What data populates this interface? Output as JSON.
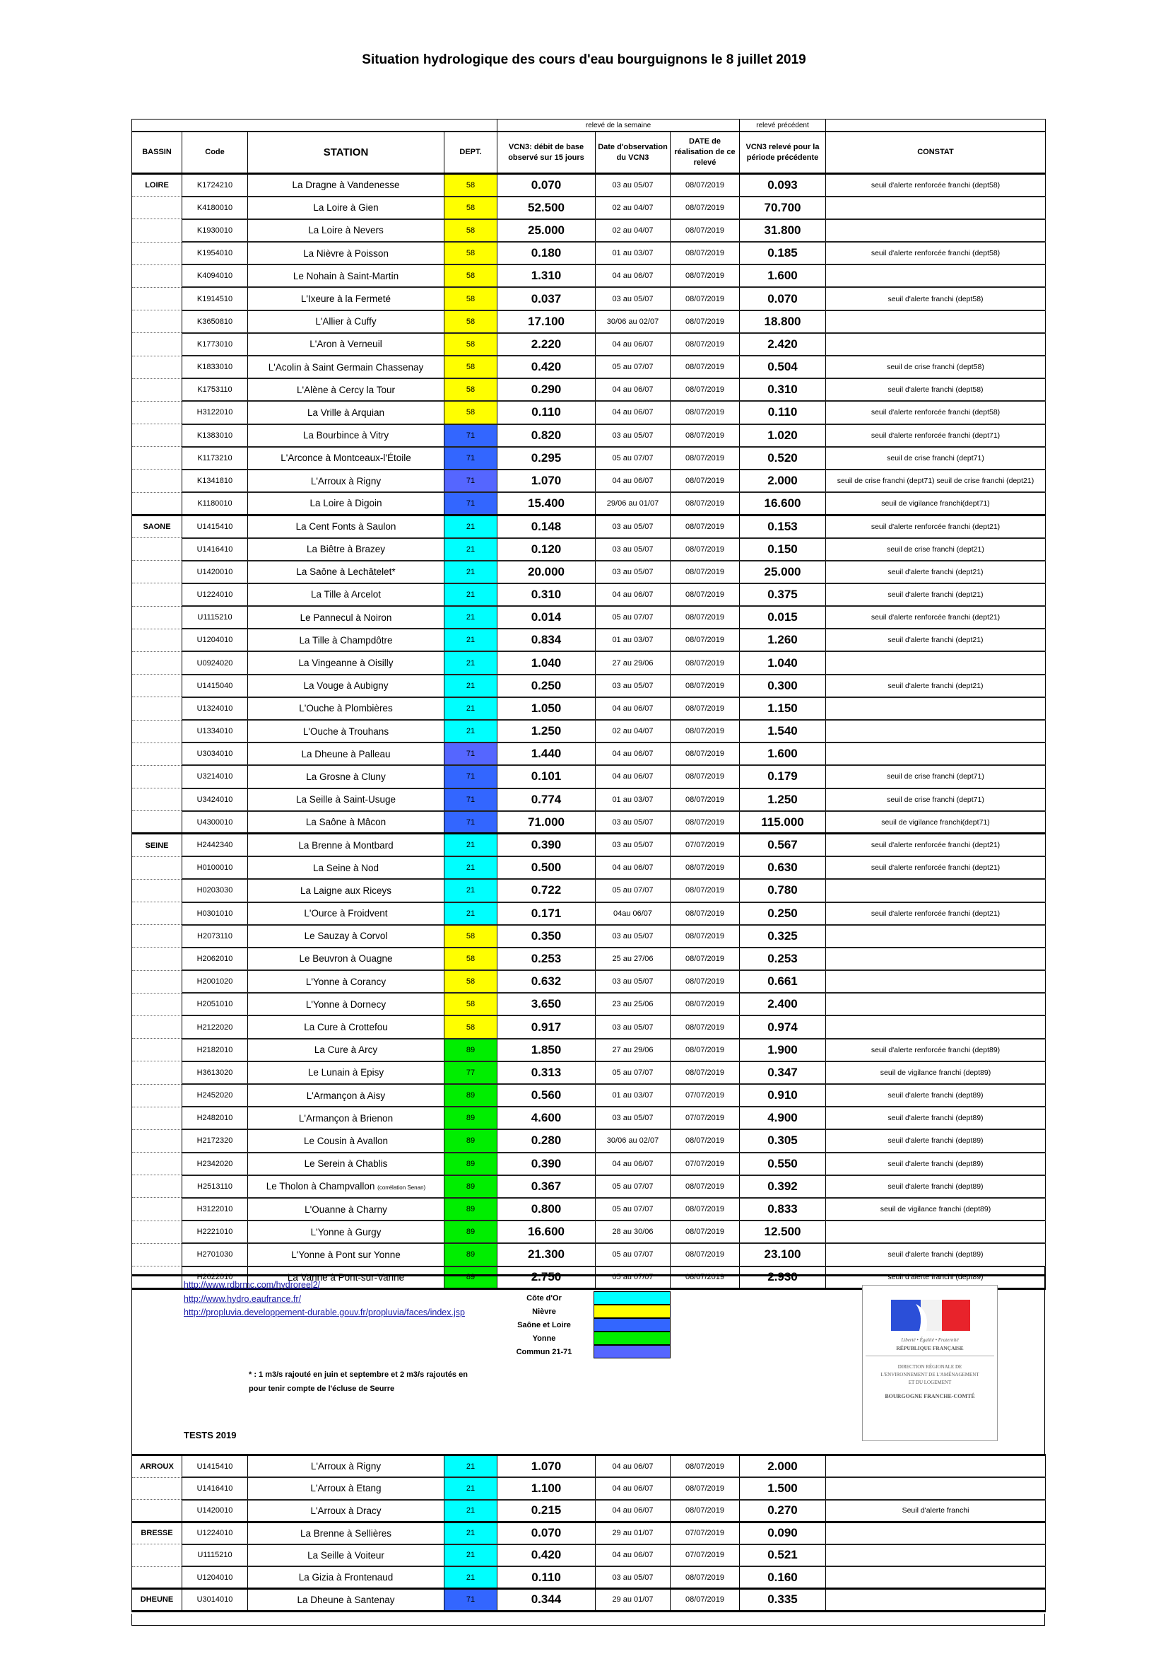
{
  "title": "Situation hydrologique des cours d'eau bourguignons le 8 juillet 2019",
  "band": {
    "week": "relevé de la semaine",
    "previous": "relevé précédent"
  },
  "headers": {
    "bassin": "BASSIN",
    "code": "Code",
    "station": "STATION",
    "dept": "DEPT.",
    "vcn3": "VCN3: débit de base observé sur 15 jours",
    "date_obs": "Date d'observation du VCN3",
    "date_releve": "DATE de réalisation de ce relevé",
    "vcn3_prev": "VCN3 relevé pour la période précédente",
    "constat": "CONSTAT"
  },
  "colors": {
    "cote": "#00ffff",
    "nievre": "#ffff00",
    "saone": "#3366ff",
    "yonne": "#00ee00",
    "commun": "#5566ff"
  },
  "main": {
    "groups": [
      {
        "bassin": "LOIRE",
        "rows": [
          [
            "K1724210",
            "La Dragne à Vandenesse",
            "58",
            "0.070",
            "03 au 05/07",
            "08/07/2019",
            "0.093",
            "seuil d'alerte renforcée franchi (dept58)",
            "nievre"
          ],
          [
            "K4180010",
            "La Loire à Gien",
            "58",
            "52.500",
            "02 au 04/07",
            "08/07/2019",
            "70.700",
            "",
            "nievre"
          ],
          [
            "K1930010",
            "La Loire à Nevers",
            "58",
            "25.000",
            "02 au 04/07",
            "08/07/2019",
            "31.800",
            "",
            "nievre"
          ],
          [
            "K1954010",
            "La Nièvre à Poisson",
            "58",
            "0.180",
            "01 au 03/07",
            "08/07/2019",
            "0.185",
            "seuil d'alerte renforcée franchi (dept58)",
            "nievre"
          ],
          [
            "K4094010",
            "Le Nohain à Saint-Martin",
            "58",
            "1.310",
            "04 au 06/07",
            "08/07/2019",
            "1.600",
            "",
            "nievre"
          ],
          [
            "K1914510",
            "L'Ixeure à la Fermeté",
            "58",
            "0.037",
            "03 au 05/07",
            "08/07/2019",
            "0.070",
            "seuil d'alerte franchi (dept58)",
            "nievre"
          ],
          [
            "K3650810",
            "L'Allier à Cuffy",
            "58",
            "17.100",
            "30/06 au 02/07",
            "08/07/2019",
            "18.800",
            "",
            "nievre"
          ],
          [
            "K1773010",
            "L'Aron à Verneuil",
            "58",
            "2.220",
            "04 au 06/07",
            "08/07/2019",
            "2.420",
            "",
            "nievre"
          ],
          [
            "K1833010",
            "L'Acolin à Saint Germain Chassenay",
            "58",
            "0.420",
            "05 au 07/07",
            "08/07/2019",
            "0.504",
            "seuil de crise franchi (dept58)",
            "nievre"
          ],
          [
            "K1753110",
            "L'Alène à Cercy la Tour",
            "58",
            "0.290",
            "04 au 06/07",
            "08/07/2019",
            "0.310",
            "seuil d'alerte franchi (dept58)",
            "nievre"
          ],
          [
            "H3122010",
            "La Vrille à Arquian",
            "58",
            "0.110",
            "04 au 06/07",
            "08/07/2019",
            "0.110",
            "seuil d'alerte renforcée franchi (dept58)",
            "nievre"
          ],
          [
            "K1383010",
            "La Bourbince à Vitry",
            "71",
            "0.820",
            "03 au 05/07",
            "08/07/2019",
            "1.020",
            "seuil d'alerte renforcée franchi (dept71)",
            "saone"
          ],
          [
            "K1173210",
            "L'Arconce à Montceaux-l'Étoile",
            "71",
            "0.295",
            "05 au 07/07",
            "08/07/2019",
            "0.520",
            "seuil de crise franchi (dept71)",
            "saone"
          ],
          [
            "K1341810",
            "L'Arroux à Rigny",
            "71",
            "1.070",
            "04 au 06/07",
            "08/07/2019",
            "2.000",
            "seuil de crise franchi (dept71)  seuil de crise franchi (dept21)",
            "commun"
          ],
          [
            "K1180010",
            "La Loire à Digoin",
            "71",
            "15.400",
            "29/06 au 01/07",
            "08/07/2019",
            "16.600",
            "seuil de vigilance franchi(dept71)",
            "saone"
          ]
        ]
      },
      {
        "bassin": "SAONE",
        "rows": [
          [
            "U1415410",
            "La Cent Fonts à Saulon",
            "21",
            "0.148",
            "03 au 05/07",
            "08/07/2019",
            "0.153",
            "seuil d'alerte renforcée franchi (dept21)",
            "cote"
          ],
          [
            "U1416410",
            "La Biêtre à Brazey",
            "21",
            "0.120",
            "03 au 05/07",
            "08/07/2019",
            "0.150",
            "seuil de crise franchi (dept21)",
            "cote"
          ],
          [
            "U1420010",
            "La Saône à Lechâtelet*",
            "21",
            "20.000",
            "03 au 05/07",
            "08/07/2019",
            "25.000",
            "seuil d'alerte franchi (dept21)",
            "cote"
          ],
          [
            "U1224010",
            "La Tille à Arcelot",
            "21",
            "0.310",
            "04 au 06/07",
            "08/07/2019",
            "0.375",
            "seuil d'alerte franchi (dept21)",
            "cote"
          ],
          [
            "U1115210",
            "Le Pannecul à Noiron",
            "21",
            "0.014",
            "05 au 07/07",
            "08/07/2019",
            "0.015",
            "seuil d'alerte renforcée franchi (dept21)",
            "cote"
          ],
          [
            "U1204010",
            "La Tille à Champdôtre",
            "21",
            "0.834",
            "01 au 03/07",
            "08/07/2019",
            "1.260",
            "seuil d'alerte franchi (dept21)",
            "cote"
          ],
          [
            "U0924020",
            "La Vingeanne à Oisilly",
            "21",
            "1.040",
            "27 au 29/06",
            "08/07/2019",
            "1.040",
            "",
            "cote"
          ],
          [
            "U1415040",
            "La Vouge à Aubigny",
            "21",
            "0.250",
            "03 au 05/07",
            "08/07/2019",
            "0.300",
            "seuil d'alerte franchi (dept21)",
            "cote"
          ],
          [
            "U1324010",
            "L'Ouche à Plombières",
            "21",
            "1.050",
            "04 au 06/07",
            "08/07/2019",
            "1.150",
            "",
            "cote"
          ],
          [
            "U1334010",
            "L'Ouche à Trouhans",
            "21",
            "1.250",
            "02 au 04/07",
            "08/07/2019",
            "1.540",
            "",
            "cote"
          ],
          [
            "U3034010",
            "La Dheune à Palleau",
            "71",
            "1.440",
            "04 au 06/07",
            "08/07/2019",
            "1.600",
            "",
            "commun"
          ],
          [
            "U3214010",
            "La Grosne à Cluny",
            "71",
            "0.101",
            "04 au 06/07",
            "08/07/2019",
            "0.179",
            "seuil de crise franchi (dept71)",
            "saone"
          ],
          [
            "U3424010",
            "La Seille à Saint-Usuge",
            "71",
            "0.774",
            "01 au 03/07",
            "08/07/2019",
            "1.250",
            "seuil de crise franchi (dept71)",
            "saone"
          ],
          [
            "U4300010",
            "La Saône à Mâcon",
            "71",
            "71.000",
            "03 au 05/07",
            "08/07/2019",
            "115.000",
            "seuil de vigilance franchi(dept71)",
            "saone"
          ]
        ]
      },
      {
        "bassin": "SEINE",
        "rows": [
          [
            "H2442340",
            "La Brenne à Montbard",
            "21",
            "0.390",
            "03 au 05/07",
            "07/07/2019",
            "0.567",
            "seuil d'alerte renforcée franchi (dept21)",
            "cote"
          ],
          [
            "H0100010",
            "La Seine à Nod",
            "21",
            "0.500",
            "04 au 06/07",
            "08/07/2019",
            "0.630",
            "seuil d'alerte renforcée franchi (dept21)",
            "cote"
          ],
          [
            "H0203030",
            "La Laigne aux Riceys",
            "21",
            "0.722",
            "05 au 07/07",
            "08/07/2019",
            "0.780",
            "",
            "cote"
          ],
          [
            "H0301010",
            "L'Ource à Froidvent",
            "21",
            "0.171",
            "04au 06/07",
            "08/07/2019",
            "0.250",
            "seuil d'alerte renforcée franchi (dept21)",
            "cote"
          ],
          [
            "H2073110",
            "Le Sauzay à Corvol",
            "58",
            "0.350",
            "03 au 05/07",
            "08/07/2019",
            "0.325",
            "",
            "nievre"
          ],
          [
            "H2062010",
            "Le Beuvron à Ouagne",
            "58",
            "0.253",
            "25 au 27/06",
            "08/07/2019",
            "0.253",
            "",
            "nievre"
          ],
          [
            "H2001020",
            "L'Yonne à Corancy",
            "58",
            "0.632",
            "03 au 05/07",
            "08/07/2019",
            "0.661",
            "",
            "nievre"
          ],
          [
            "H2051010",
            "L'Yonne à Dornecy",
            "58",
            "3.650",
            "23 au 25/06",
            "08/07/2019",
            "2.400",
            "",
            "nievre"
          ],
          [
            "H2122020",
            "La Cure à Crottefou",
            "58",
            "0.917",
            "03 au 05/07",
            "08/07/2019",
            "0.974",
            "",
            "nievre"
          ],
          [
            "H2182010",
            "La Cure à Arcy",
            "89",
            "1.850",
            "27 au 29/06",
            "08/07/2019",
            "1.900",
            "seuil d'alerte renforcée franchi (dept89)",
            "yonne"
          ],
          [
            "H3613020",
            "Le Lunain à Episy",
            "77",
            "0.313",
            "05 au 07/07",
            "08/07/2019",
            "0.347",
            "seuil de vigilance franchi (dept89)",
            "yonne"
          ],
          [
            "H2452020",
            "L'Armançon à Aisy",
            "89",
            "0.560",
            "01 au 03/07",
            "07/07/2019",
            "0.910",
            "seuil d'alerte franchi (dept89)",
            "yonne"
          ],
          [
            "H2482010",
            "L'Armançon à Brienon",
            "89",
            "4.600",
            "03 au 05/07",
            "07/07/2019",
            "4.900",
            "seuil d'alerte franchi (dept89)",
            "yonne"
          ],
          [
            "H2172320",
            "Le Cousin à Avallon",
            "89",
            "0.280",
            "30/06 au 02/07",
            "08/07/2019",
            "0.305",
            "seuil d'alerte franchi (dept89)",
            "yonne"
          ],
          [
            "H2342020",
            "Le Serein à Chablis",
            "89",
            "0.390",
            "04 au 06/07",
            "07/07/2019",
            "0.550",
            "seuil d'alerte franchi (dept89)",
            "yonne"
          ],
          [
            "H2513110",
            "Le Tholon à Champvallon",
            "89",
            "0.367",
            "05 au 07/07",
            "08/07/2019",
            "0.392",
            "seuil d'alerte franchi (dept89)",
            "yonne",
            "(corrélation Senan)"
          ],
          [
            "H3122010",
            "L'Ouanne à Charny",
            "89",
            "0.800",
            "05 au 07/07",
            "08/07/2019",
            "0.833",
            "seuil de vigilance franchi (dept89)",
            "yonne"
          ],
          [
            "H2221010",
            "L'Yonne à Gurgy",
            "89",
            "16.600",
            "28 au 30/06",
            "08/07/2019",
            "12.500",
            "",
            "yonne"
          ],
          [
            "H2701030",
            "L'Yonne à Pont sur Yonne",
            "89",
            "21.300",
            "05 au 07/07",
            "08/07/2019",
            "23.100",
            "seuil d'alerte franchi (dept89)",
            "yonne"
          ],
          [
            "H2622010",
            "La Vanne à Pont-sur-Vanne",
            "89",
            "2.750",
            "05 au 07/07",
            "08/07/2019",
            "2.930",
            "seuil d'alerte franchi (dept89)",
            "yonne"
          ]
        ]
      }
    ]
  },
  "footer": {
    "links": [
      "http://www.rdbrmc.com/hydroreel2/",
      "http://www.hydro.eaufrance.fr/",
      "http://propluvia.developpement-durable.gouv.fr/propluvia/faces/index.jsp"
    ],
    "legend": [
      {
        "label": "Côte d'Or",
        "color": "cote"
      },
      {
        "label": "Nièvre",
        "color": "nievre"
      },
      {
        "label": "Saône et Loire",
        "color": "saone"
      },
      {
        "label": "Yonne",
        "color": "yonne"
      },
      {
        "label": "Commun 21-71",
        "color": "commun"
      }
    ],
    "note_line1": "* : 1 m3/s rajouté en juin et septembre et 2 m3/s rajoutés en",
    "note_line2": "pour tenir compte de l'écluse de Seurre",
    "tests_title": "TESTS 2019",
    "logo": {
      "motto": "Liberté • Égalité • Fraternité",
      "republic": "RÉPUBLIQUE FRANÇAISE",
      "direction": "DIRECTION RÉGIONALE DE L'ENVIRONNEMENT DE L'AMÉNAGEMENT ET DU LOGEMENT",
      "region": "BOURGOGNE FRANCHE-COMTÉ"
    }
  },
  "tests": {
    "groups": [
      {
        "bassin": "ARROUX",
        "rows": [
          [
            "U1415410",
            "L'Arroux à Rigny",
            "21",
            "1.070",
            "04 au 06/07",
            "08/07/2019",
            "2.000",
            "",
            "cote"
          ],
          [
            "U1416410",
            "L'Arroux à Etang",
            "21",
            "1.100",
            "04 au 06/07",
            "08/07/2019",
            "1.500",
            "",
            "cote"
          ],
          [
            "U1420010",
            "L'Arroux à Dracy",
            "21",
            "0.215",
            "04 au 06/07",
            "08/07/2019",
            "0.270",
            "Seuil d'alerte franchi",
            "cote"
          ]
        ]
      },
      {
        "bassin": "BRESSE",
        "rows": [
          [
            "U1224010",
            "La Brenne à Sellières",
            "21",
            "0.070",
            "29 au 01/07",
            "07/07/2019",
            "0.090",
            "",
            "cote"
          ],
          [
            "U1115210",
            "La Seille à Voiteur",
            "21",
            "0.420",
            "04 au 06/07",
            "07/07/2019",
            "0.521",
            "",
            "cote"
          ],
          [
            "U1204010",
            "La Gizia à Frontenaud",
            "21",
            "0.110",
            "03 au 05/07",
            "08/07/2019",
            "0.160",
            "",
            "cote"
          ]
        ]
      },
      {
        "bassin": "DHEUNE",
        "rows": [
          [
            "U3014010",
            "La Dheune à Santenay",
            "71",
            "0.344",
            "29 au 01/07",
            "08/07/2019",
            "0.335",
            "",
            "saone"
          ]
        ]
      }
    ]
  }
}
